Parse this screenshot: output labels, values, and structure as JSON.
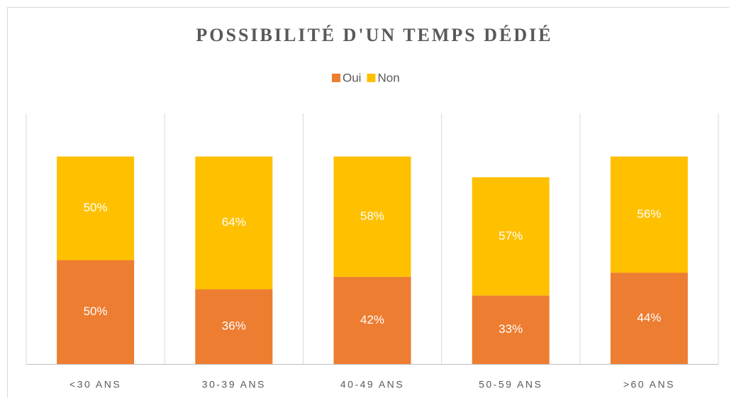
{
  "chart_data": {
    "type": "stacked_bar",
    "title": "POSSIBILITÉ D'UN TEMPS DÉDIÉ",
    "categories": [
      "<30 ANS",
      "30-39 ANS",
      "40-49 ANS",
      "50-59 ANS",
      ">60 ANS"
    ],
    "series": [
      {
        "name": "Oui",
        "color": "#ed7d31",
        "values": [
          50,
          36,
          42,
          33,
          44
        ],
        "value_labels": [
          "50%",
          "36%",
          "42%",
          "33%",
          "44%"
        ]
      },
      {
        "name": "Non",
        "color": "#ffc000",
        "values": [
          50,
          64,
          58,
          57,
          56
        ],
        "value_labels": [
          "50%",
          "64%",
          "58%",
          "57%",
          "56%"
        ]
      }
    ],
    "legend": "top",
    "grid": "vertical"
  }
}
